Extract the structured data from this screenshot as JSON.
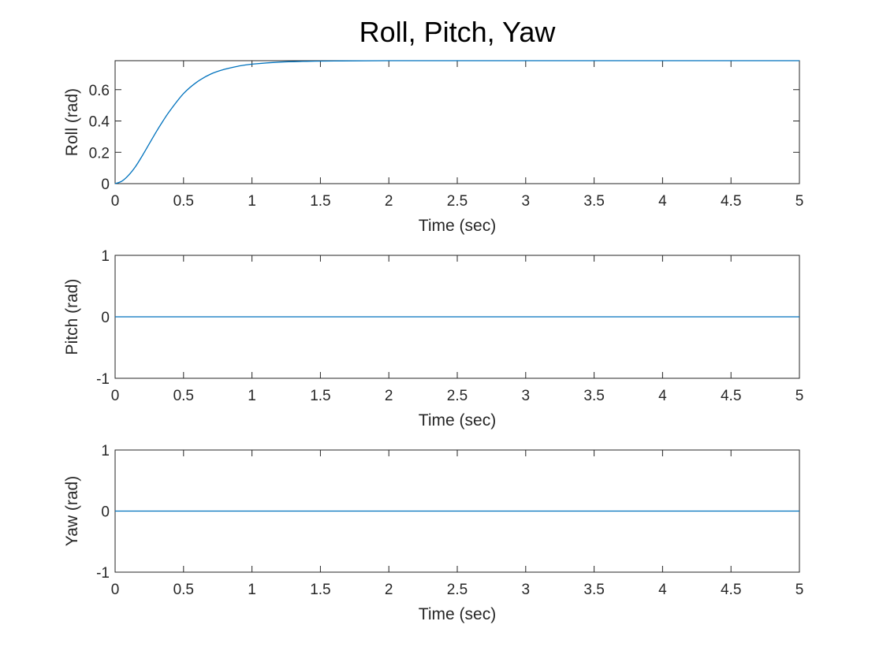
{
  "figure_title": "Roll, Pitch, Yaw",
  "colors": {
    "line": "#0072bd",
    "axes": "#262626",
    "background": "#ffffff"
  },
  "chart_data": [
    {
      "type": "line",
      "xlabel": "Time (sec)",
      "ylabel": "Roll (rad)",
      "xlim": [
        0,
        5
      ],
      "ylim": [
        0,
        0.785
      ],
      "xticks": [
        0,
        0.5,
        1,
        1.5,
        2,
        2.5,
        3,
        3.5,
        4,
        4.5,
        5
      ],
      "xtick_labels": [
        "0",
        "0.5",
        "1",
        "1.5",
        "2",
        "2.5",
        "3",
        "3.5",
        "4",
        "4.5",
        "5"
      ],
      "yticks": [
        0,
        0.2,
        0.4,
        0.6
      ],
      "ytick_labels": [
        "0",
        "0.2",
        "0.4",
        "0.6"
      ],
      "grid": false,
      "series": [
        {
          "x": [
            0,
            0.05,
            0.1,
            0.15,
            0.2,
            0.25,
            0.3,
            0.35,
            0.4,
            0.5,
            0.6,
            0.7,
            0.8,
            0.9,
            1.0,
            1.2,
            1.4,
            1.6,
            2.0,
            3.0,
            4.0,
            5.0
          ],
          "values": [
            0,
            0.016,
            0.055,
            0.11,
            0.18,
            0.255,
            0.33,
            0.4,
            0.465,
            0.575,
            0.65,
            0.7,
            0.73,
            0.75,
            0.763,
            0.776,
            0.781,
            0.783,
            0.785,
            0.785,
            0.785,
            0.785
          ]
        }
      ]
    },
    {
      "type": "line",
      "xlabel": "Time (sec)",
      "ylabel": "Pitch (rad)",
      "xlim": [
        0,
        5
      ],
      "ylim": [
        -1,
        1
      ],
      "xticks": [
        0,
        0.5,
        1,
        1.5,
        2,
        2.5,
        3,
        3.5,
        4,
        4.5,
        5
      ],
      "xtick_labels": [
        "0",
        "0.5",
        "1",
        "1.5",
        "2",
        "2.5",
        "3",
        "3.5",
        "4",
        "4.5",
        "5"
      ],
      "yticks": [
        -1,
        0,
        1
      ],
      "ytick_labels": [
        "-1",
        "0",
        "1"
      ],
      "grid": false,
      "series": [
        {
          "x": [
            0,
            5
          ],
          "values": [
            0,
            0
          ]
        }
      ]
    },
    {
      "type": "line",
      "xlabel": "Time (sec)",
      "ylabel": "Yaw (rad)",
      "xlim": [
        0,
        5
      ],
      "ylim": [
        -1,
        1
      ],
      "xticks": [
        0,
        0.5,
        1,
        1.5,
        2,
        2.5,
        3,
        3.5,
        4,
        4.5,
        5
      ],
      "xtick_labels": [
        "0",
        "0.5",
        "1",
        "1.5",
        "2",
        "2.5",
        "3",
        "3.5",
        "4",
        "4.5",
        "5"
      ],
      "yticks": [
        -1,
        0,
        1
      ],
      "ytick_labels": [
        "-1",
        "0",
        "1"
      ],
      "grid": false,
      "series": [
        {
          "x": [
            0,
            5
          ],
          "values": [
            0,
            0
          ]
        }
      ]
    }
  ]
}
